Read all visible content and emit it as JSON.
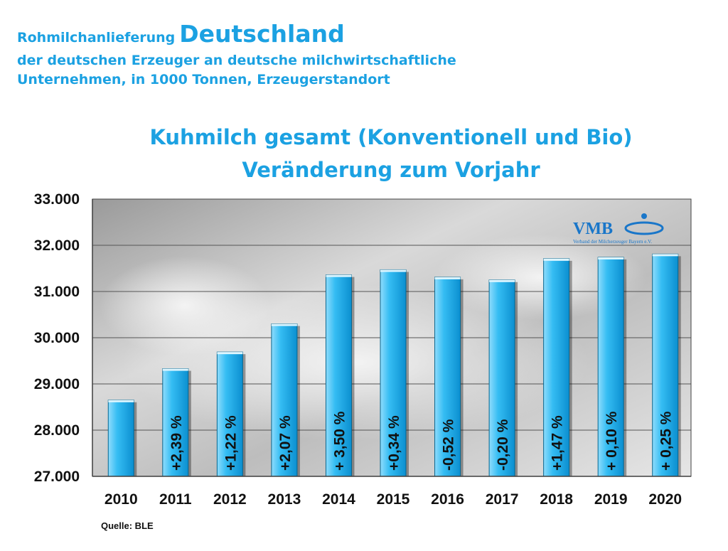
{
  "header": {
    "line1_prefix": "Rohmilchanlieferung",
    "line1_big": "Deutschland",
    "line2": "der deutschen Erzeuger an deutsche milchwirtschaftliche",
    "line3": "Unternehmen, in 1000 Tonnen, Erzeugerstandort"
  },
  "logo": {
    "text": "VMB",
    "subtitle": "Verband der Milcherzeuger Bayern e.V."
  },
  "source": "Quelle: BLE",
  "chart_data": {
    "type": "bar",
    "title": "Kuhmilch gesamt (Konventionell und Bio)",
    "subtitle": "Veränderung zum Vorjahr",
    "xlabel": "",
    "ylabel": "",
    "ylim": [
      27000,
      33000
    ],
    "yticks": [
      27000,
      28000,
      29000,
      30000,
      31000,
      32000,
      33000
    ],
    "ytick_labels": [
      "27.000",
      "28.000",
      "29.000",
      "30.000",
      "31.000",
      "32.000",
      "33.000"
    ],
    "grid": true,
    "categories": [
      "2010",
      "2011",
      "2012",
      "2013",
      "2014",
      "2015",
      "2016",
      "2017",
      "2018",
      "2019",
      "2020"
    ],
    "values": [
      28650,
      29330,
      29690,
      30300,
      31360,
      31470,
      31310,
      31250,
      31710,
      31740,
      31810
    ],
    "annotations": [
      "",
      "+2,39 %",
      "+1,22 %",
      "+2,07 %",
      "+ 3,50 %",
      "+0,34 %",
      "-0,52 %",
      "-0,20 %",
      "+1,47 %",
      "+ 0,10 %",
      "+ 0,25 %"
    ],
    "colors": {
      "bar": "#29b6f0",
      "bar_light": "#8fdcfc",
      "bar_dark": "#0b8fd0",
      "text": "#1ba1e2"
    }
  }
}
